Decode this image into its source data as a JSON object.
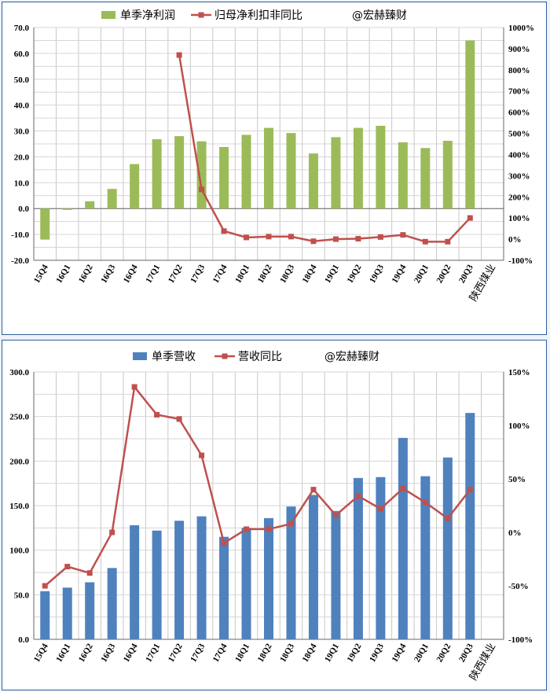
{
  "charts": [
    {
      "type": "bar+line",
      "legend": [
        {
          "label": "单季净利润",
          "kind": "bar",
          "color": "#9bbb59"
        },
        {
          "label": "归母净利扣非同比",
          "kind": "line",
          "color": "#c0504d"
        },
        {
          "label": "@宏赫臻财",
          "kind": "text"
        }
      ],
      "categories": [
        "15Q4",
        "16Q1",
        "16Q2",
        "16Q3",
        "16Q4",
        "17Q1",
        "17Q2",
        "17Q3",
        "17Q4",
        "18Q1",
        "18Q2",
        "18Q3",
        "18Q4",
        "19Q1",
        "19Q2",
        "19Q3",
        "19Q4",
        "20Q1",
        "20Q2",
        "20Q3"
      ],
      "company_label": "陕西煤业",
      "bars": [
        -12.0,
        -0.5,
        2.8,
        7.6,
        17.2,
        26.8,
        28.0,
        26.0,
        23.8,
        28.5,
        31.2,
        29.2,
        21.3,
        27.6,
        31.2,
        32.0,
        25.6,
        23.4,
        26.2,
        65.0
      ],
      "line": [
        null,
        null,
        null,
        null,
        null,
        null,
        870,
        235,
        38,
        8,
        12,
        12,
        -10,
        0,
        2,
        10,
        20,
        -12,
        -12,
        100
      ],
      "y_left": {
        "min": -20,
        "max": 70,
        "step": 10,
        "ticks": [
          "-20.0",
          "-10.0",
          "0.0",
          "10.0",
          "20.0",
          "30.0",
          "40.0",
          "50.0",
          "60.0",
          "70.0"
        ]
      },
      "y_right": {
        "min": -100,
        "max": 1000,
        "step": 100,
        "ticks": [
          "-100%",
          "0%",
          "100%",
          "200%",
          "300%",
          "400%",
          "500%",
          "600%",
          "700%",
          "800%",
          "900%",
          "1000%"
        ]
      }
    },
    {
      "type": "bar+line",
      "legend": [
        {
          "label": "单季营收",
          "kind": "bar",
          "color": "#4f81bd"
        },
        {
          "label": "营收同比",
          "kind": "line",
          "color": "#c0504d"
        },
        {
          "label": "@宏赫臻财",
          "kind": "text"
        }
      ],
      "categories": [
        "15Q4",
        "16Q1",
        "16Q2",
        "16Q3",
        "16Q4",
        "17Q1",
        "17Q2",
        "17Q3",
        "17Q4",
        "18Q1",
        "18Q2",
        "18Q3",
        "18Q4",
        "19Q1",
        "19Q2",
        "19Q3",
        "19Q4",
        "20Q1",
        "20Q2",
        "20Q3"
      ],
      "company_label": "陕西煤业",
      "bars": [
        54,
        58,
        64,
        80,
        128,
        122,
        133,
        138,
        115,
        125,
        136,
        149,
        162,
        144,
        181,
        182,
        226,
        183,
        204,
        254
      ],
      "line": [
        -50,
        -32,
        -38,
        0,
        136,
        110,
        106,
        72,
        -10,
        3,
        3,
        8,
        40,
        16,
        34,
        22,
        41,
        28,
        13,
        40
      ],
      "y_left": {
        "min": 0,
        "max": 300,
        "step": 50,
        "ticks": [
          "0.0",
          "50.0",
          "100.0",
          "150.0",
          "200.0",
          "250.0",
          "300.0"
        ]
      },
      "y_right": {
        "min": -100,
        "max": 150,
        "step": 50,
        "ticks": [
          "-100%",
          "-50%",
          "0%",
          "50%",
          "100%",
          "150%"
        ]
      }
    }
  ]
}
